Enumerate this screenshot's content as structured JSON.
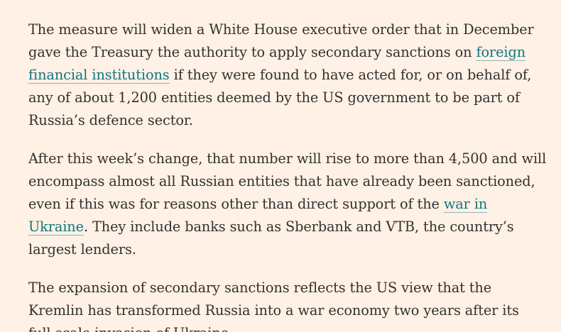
{
  "article": {
    "paragraphs": [
      {
        "before": "The measure will widen a White House executive order that in December gave the Treasury the authority to apply secondary sanctions on ",
        "link": "foreign financial institutions",
        "after": " if they were found to have acted for, or on behalf of, any of about 1,200 entities deemed by the US government to be part of Russia’s defence sector."
      },
      {
        "before": "After this week’s change, that number will rise to more than 4,500 and will encompass almost all Russian entities that have already been sanctioned, even if this was for reasons other than direct support of the ",
        "link": "war in Ukraine",
        "after": ". They include banks such as Sberbank and VTB, the country’s largest lenders."
      },
      {
        "text": "The expansion of secondary sanctions reflects the US view that the Kremlin has transformed Russia into a war economy two years after its full-scale invasion of Ukraine."
      }
    ]
  },
  "colors": {
    "background": "#FFF1E5",
    "text": "#33302E",
    "link": "#0D7680"
  }
}
